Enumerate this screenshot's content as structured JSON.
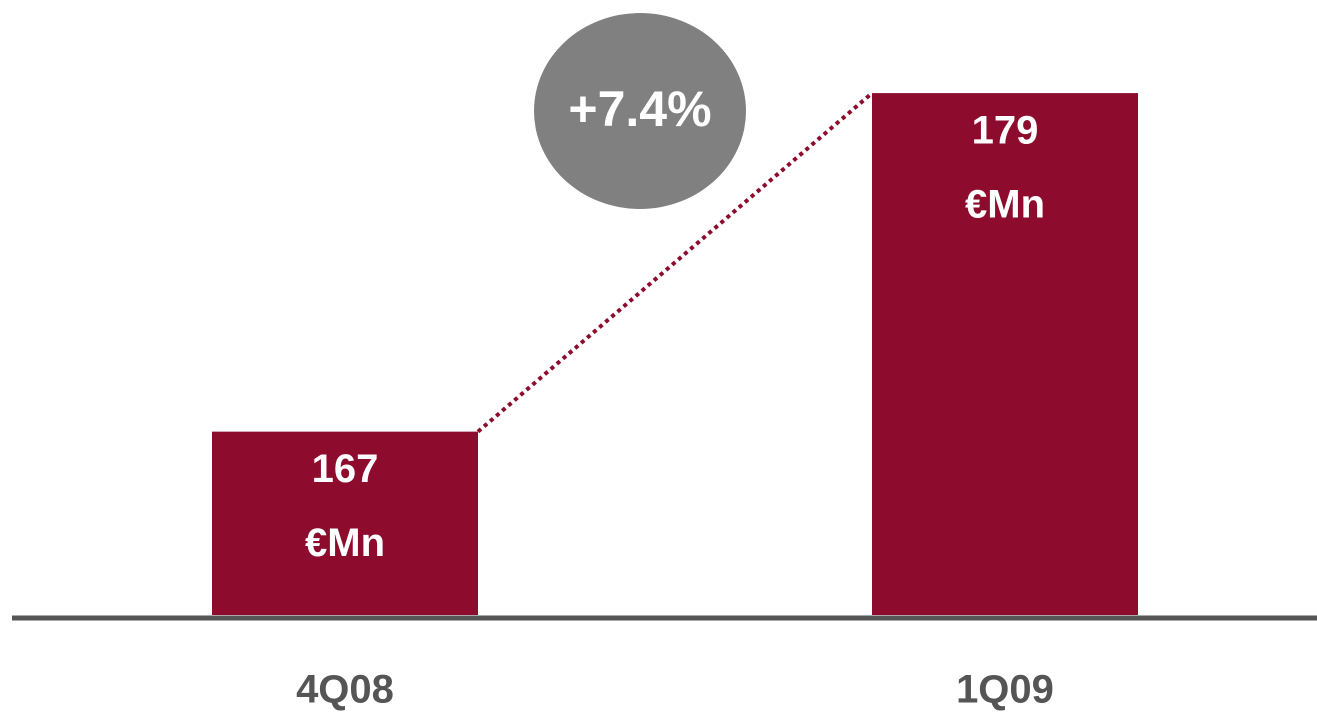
{
  "chart_data": {
    "type": "bar",
    "categories": [
      "4Q08",
      "1Q09"
    ],
    "values": [
      167,
      179
    ],
    "unit": "€Mn",
    "color": "#8d0b2c",
    "ylim": [
      160.5,
      182.3
    ],
    "annotation": "+7.4%",
    "grid": false
  }
}
